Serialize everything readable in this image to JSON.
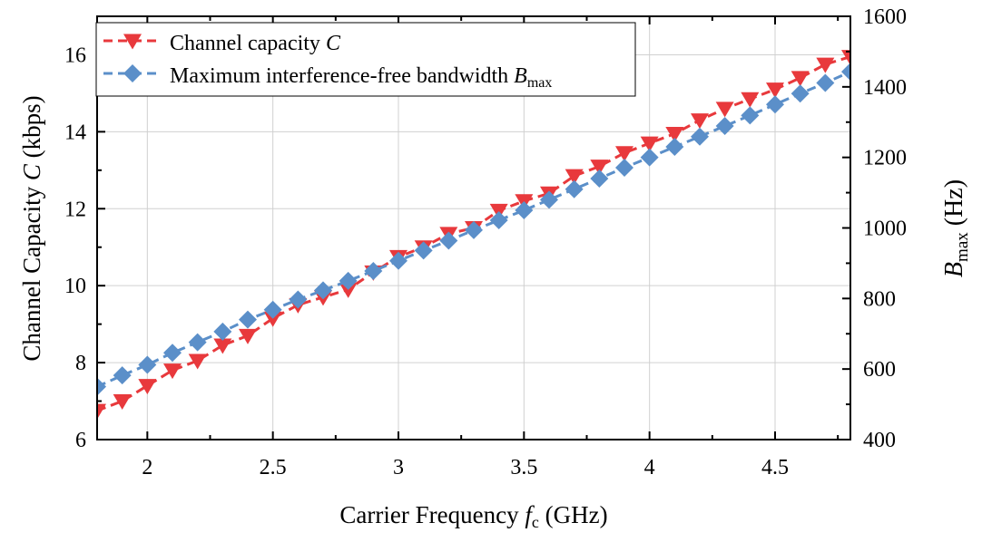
{
  "chart_data": {
    "type": "line",
    "x_axis": {
      "label_prefix": "Carrier Frequency ",
      "label_symbol": "f",
      "label_subscript": "c",
      "label_suffix": " (GHz)",
      "range": [
        1.8,
        4.8
      ],
      "ticks": [
        2,
        2.5,
        3,
        3.5,
        4,
        4.5
      ],
      "tick_labels": [
        "2",
        "2.5",
        "3",
        "3.5",
        "4",
        "4.5"
      ]
    },
    "y_left_axis": {
      "label_prefix": "Channel Capacity  ",
      "label_symbol": "C",
      "label_suffix": " (kbps)",
      "range": [
        6,
        17
      ],
      "ticks": [
        6,
        8,
        10,
        12,
        14,
        16
      ],
      "tick_labels": [
        "6",
        "8",
        "10",
        "12",
        "14",
        "16"
      ]
    },
    "y_right_axis": {
      "label_symbol": "B",
      "label_subscript": "max",
      "label_suffix": " (Hz)",
      "range": [
        400,
        1600
      ],
      "ticks": [
        400,
        600,
        800,
        1000,
        1200,
        1400,
        1600
      ],
      "tick_labels": [
        "400",
        "600",
        "800",
        "1000",
        "1200",
        "1400",
        "1600"
      ]
    },
    "grid": true,
    "legend_position": "top-left",
    "x": [
      1.8,
      1.9,
      2.0,
      2.1,
      2.2,
      2.3,
      2.4,
      2.5,
      2.6,
      2.7,
      2.8,
      2.9,
      3.0,
      3.1,
      3.2,
      3.3,
      3.4,
      3.5,
      3.6,
      3.7,
      3.8,
      3.9,
      4.0,
      4.1,
      4.2,
      4.3,
      4.4,
      4.5,
      4.6,
      4.7,
      4.8
    ],
    "series": [
      {
        "name": "Channel capacity  ",
        "name_symbol": "C",
        "axis": "left",
        "color": "#e8393c",
        "marker": "triangle-down",
        "values": [
          6.75,
          7.0,
          7.4,
          7.8,
          8.05,
          8.45,
          8.7,
          9.15,
          9.5,
          9.7,
          9.9,
          10.35,
          10.75,
          11.0,
          11.35,
          11.5,
          11.95,
          12.2,
          12.4,
          12.85,
          13.1,
          13.45,
          13.7,
          13.95,
          14.3,
          14.6,
          14.85,
          15.1,
          15.4,
          15.75,
          15.95
        ]
      },
      {
        "name": "Maximum interference-free bandwidth   ",
        "name_symbol": "B",
        "name_subscript": "max",
        "axis": "right",
        "color": "#5b8fc9",
        "marker": "diamond",
        "values": [
          550,
          582,
          612,
          646,
          676,
          706,
          740,
          768,
          797,
          823,
          850,
          878,
          907,
          936,
          964,
          994,
          1022,
          1050,
          1080,
          1110,
          1140,
          1171,
          1200,
          1230,
          1259,
          1289,
          1319,
          1350,
          1381,
          1411,
          1443
        ]
      }
    ]
  }
}
